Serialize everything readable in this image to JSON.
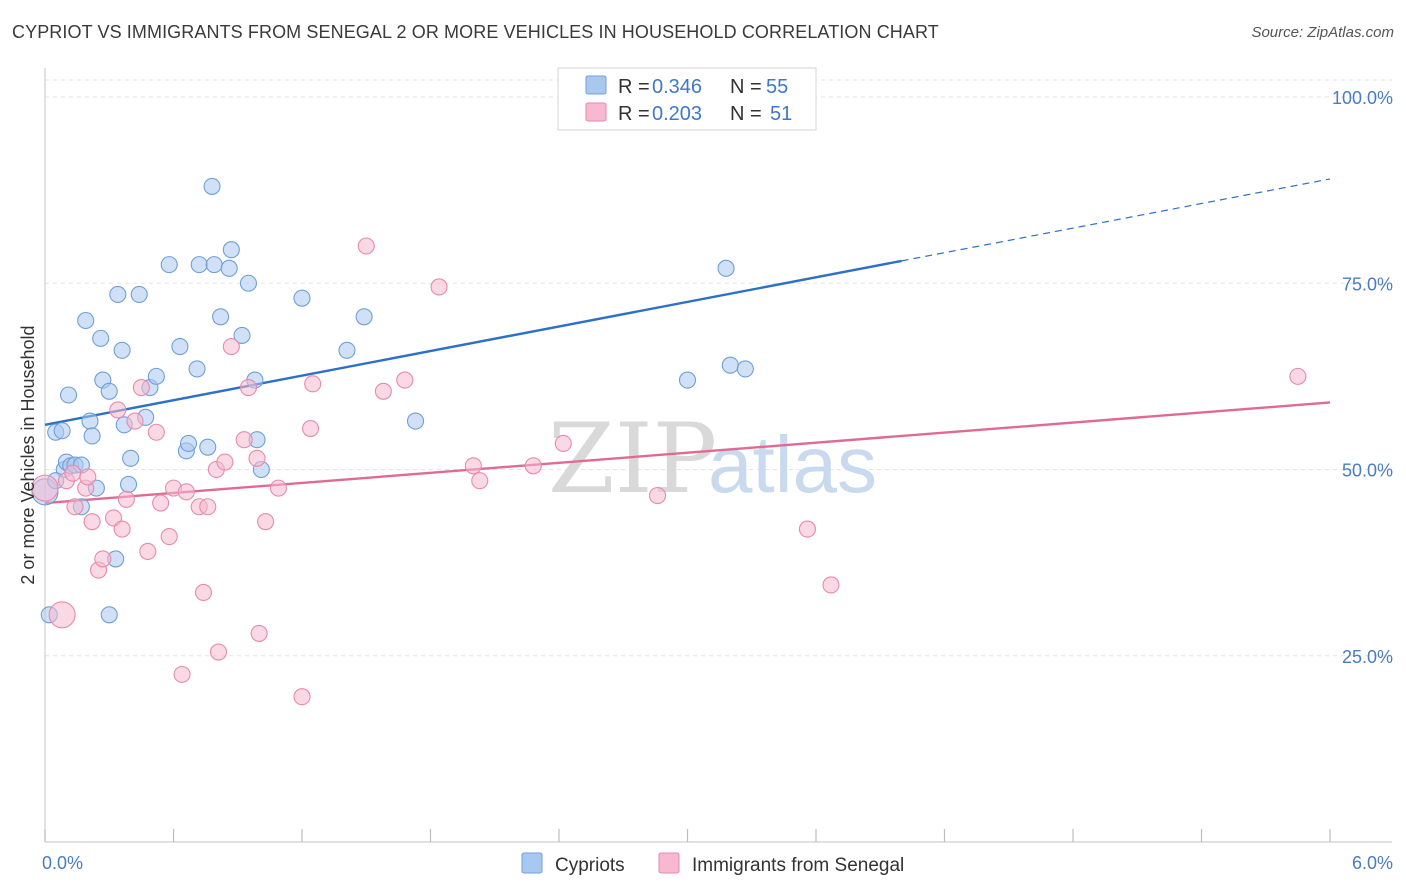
{
  "header": {
    "title": "CYPRIOT VS IMMIGRANTS FROM SENEGAL 2 OR MORE VEHICLES IN HOUSEHOLD CORRELATION CHART",
    "source": "Source: ZipAtlas.com"
  },
  "watermark": {
    "zip": "ZIP",
    "atlas": "atlas"
  },
  "legend_box": {
    "rows": [
      {
        "r_label": "R = ",
        "r_value": "0.346",
        "n_label": "N = ",
        "n_value": "55",
        "color": "#a9c8f0"
      },
      {
        "r_label": "R = ",
        "r_value": "0.203",
        "n_label": "N = ",
        "n_value": "51",
        "color": "#f6b9cf"
      }
    ]
  },
  "bottom_legend": {
    "items": [
      {
        "label": "Cypriots",
        "color": "#a9c8f0"
      },
      {
        "label": "Immigrants from Senegal",
        "color": "#f6b9cf"
      }
    ]
  },
  "chart_data": {
    "type": "scatter",
    "title": "CYPRIOT VS IMMIGRANTS FROM SENEGAL 2 OR MORE VEHICLES IN HOUSEHOLD CORRELATION CHART",
    "xlabel": "",
    "ylabel": "2 or more Vehicles in Household",
    "xlim": [
      0,
      6
    ],
    "ylim": [
      0,
      100
    ],
    "x_tick_labels": [
      "0.0%",
      "6.0%"
    ],
    "y_ticks": [
      25,
      50,
      75,
      100
    ],
    "y_tick_labels": [
      "25.0%",
      "50.0%",
      "75.0%",
      "100.0%"
    ],
    "grid": true,
    "legend_position": "top-center",
    "series": [
      {
        "name": "Cypriots",
        "color": "#a9c8f0",
        "stroke": "#6f9fd8",
        "line_color": "#2e6fc9",
        "trend": {
          "x0": 0.0,
          "y0": 56.0,
          "x1": 4.0,
          "y1": 78.0,
          "x_dash_end": 6.0,
          "y_dash_end": 89.0
        },
        "points": [
          [
            0.0,
            47.0
          ],
          [
            0.02,
            30.5
          ],
          [
            0.05,
            55.0
          ],
          [
            0.08,
            55.2
          ],
          [
            0.09,
            50.0
          ],
          [
            0.1,
            51.0
          ],
          [
            0.11,
            60.0
          ],
          [
            0.12,
            50.5
          ],
          [
            0.14,
            50.6
          ],
          [
            0.17,
            50.6
          ],
          [
            0.17,
            45.0
          ],
          [
            0.19,
            70.0
          ],
          [
            0.21,
            56.5
          ],
          [
            0.22,
            54.5
          ],
          [
            0.24,
            47.5
          ],
          [
            0.26,
            67.6
          ],
          [
            0.27,
            62.0
          ],
          [
            0.3,
            60.5
          ],
          [
            0.3,
            30.5
          ],
          [
            0.33,
            38.0
          ],
          [
            0.34,
            73.5
          ],
          [
            0.36,
            66.0
          ],
          [
            0.37,
            56.0
          ],
          [
            0.39,
            48.0
          ],
          [
            0.4,
            51.5
          ],
          [
            0.44,
            73.5
          ],
          [
            0.47,
            57.0
          ],
          [
            0.49,
            61.0
          ],
          [
            0.52,
            62.5
          ],
          [
            0.58,
            77.5
          ],
          [
            0.63,
            66.5
          ],
          [
            0.66,
            52.5
          ],
          [
            0.67,
            53.5
          ],
          [
            0.71,
            63.5
          ],
          [
            0.72,
            77.5
          ],
          [
            0.76,
            53.0
          ],
          [
            0.78,
            88.0
          ],
          [
            0.79,
            77.5
          ],
          [
            0.82,
            70.5
          ],
          [
            0.86,
            77.0
          ],
          [
            0.87,
            79.5
          ],
          [
            0.92,
            68.0
          ],
          [
            0.95,
            75.0
          ],
          [
            0.98,
            62.0
          ],
          [
            0.99,
            54.0
          ],
          [
            1.01,
            50.0
          ],
          [
            1.2,
            73.0
          ],
          [
            1.41,
            66.0
          ],
          [
            1.49,
            70.5
          ],
          [
            1.73,
            56.5
          ],
          [
            3.0,
            62.0
          ],
          [
            3.18,
            77.0
          ],
          [
            3.2,
            64.0
          ],
          [
            3.27,
            63.5
          ],
          [
            0.05,
            48.5
          ]
        ]
      },
      {
        "name": "Immigrants from Senegal",
        "color": "#f6b9cf",
        "stroke": "#e88aab",
        "line_color": "#e06a93",
        "trend": {
          "x0": 0.0,
          "y0": 45.5,
          "x1": 6.0,
          "y1": 59.0
        },
        "points": [
          [
            0.0,
            47.5
          ],
          [
            0.08,
            30.5
          ],
          [
            0.1,
            48.5
          ],
          [
            0.13,
            49.5
          ],
          [
            0.14,
            45.0
          ],
          [
            0.19,
            47.5
          ],
          [
            0.2,
            49.0
          ],
          [
            0.22,
            43.0
          ],
          [
            0.25,
            36.5
          ],
          [
            0.27,
            38.0
          ],
          [
            0.32,
            43.5
          ],
          [
            0.34,
            58.0
          ],
          [
            0.36,
            42.0
          ],
          [
            0.38,
            46.0
          ],
          [
            0.42,
            56.5
          ],
          [
            0.45,
            61.0
          ],
          [
            0.48,
            39.0
          ],
          [
            0.52,
            55.0
          ],
          [
            0.54,
            45.5
          ],
          [
            0.58,
            41.0
          ],
          [
            0.6,
            47.5
          ],
          [
            0.64,
            22.5
          ],
          [
            0.66,
            47.0
          ],
          [
            0.72,
            45.0
          ],
          [
            0.74,
            33.5
          ],
          [
            0.76,
            45.0
          ],
          [
            0.8,
            50.0
          ],
          [
            0.81,
            25.5
          ],
          [
            0.84,
            51.0
          ],
          [
            0.87,
            66.5
          ],
          [
            0.93,
            54.0
          ],
          [
            0.95,
            61.0
          ],
          [
            0.99,
            51.5
          ],
          [
            1.0,
            28.0
          ],
          [
            1.03,
            43.0
          ],
          [
            1.09,
            47.5
          ],
          [
            1.2,
            19.5
          ],
          [
            1.24,
            55.5
          ],
          [
            1.25,
            61.5
          ],
          [
            1.5,
            80.0
          ],
          [
            1.58,
            60.5
          ],
          [
            1.68,
            62.0
          ],
          [
            1.84,
            74.5
          ],
          [
            2.0,
            50.5
          ],
          [
            2.03,
            48.5
          ],
          [
            2.28,
            50.5
          ],
          [
            2.42,
            53.5
          ],
          [
            2.86,
            46.5
          ],
          [
            3.56,
            42.0
          ],
          [
            3.67,
            34.5
          ],
          [
            5.85,
            62.5
          ]
        ]
      }
    ]
  }
}
